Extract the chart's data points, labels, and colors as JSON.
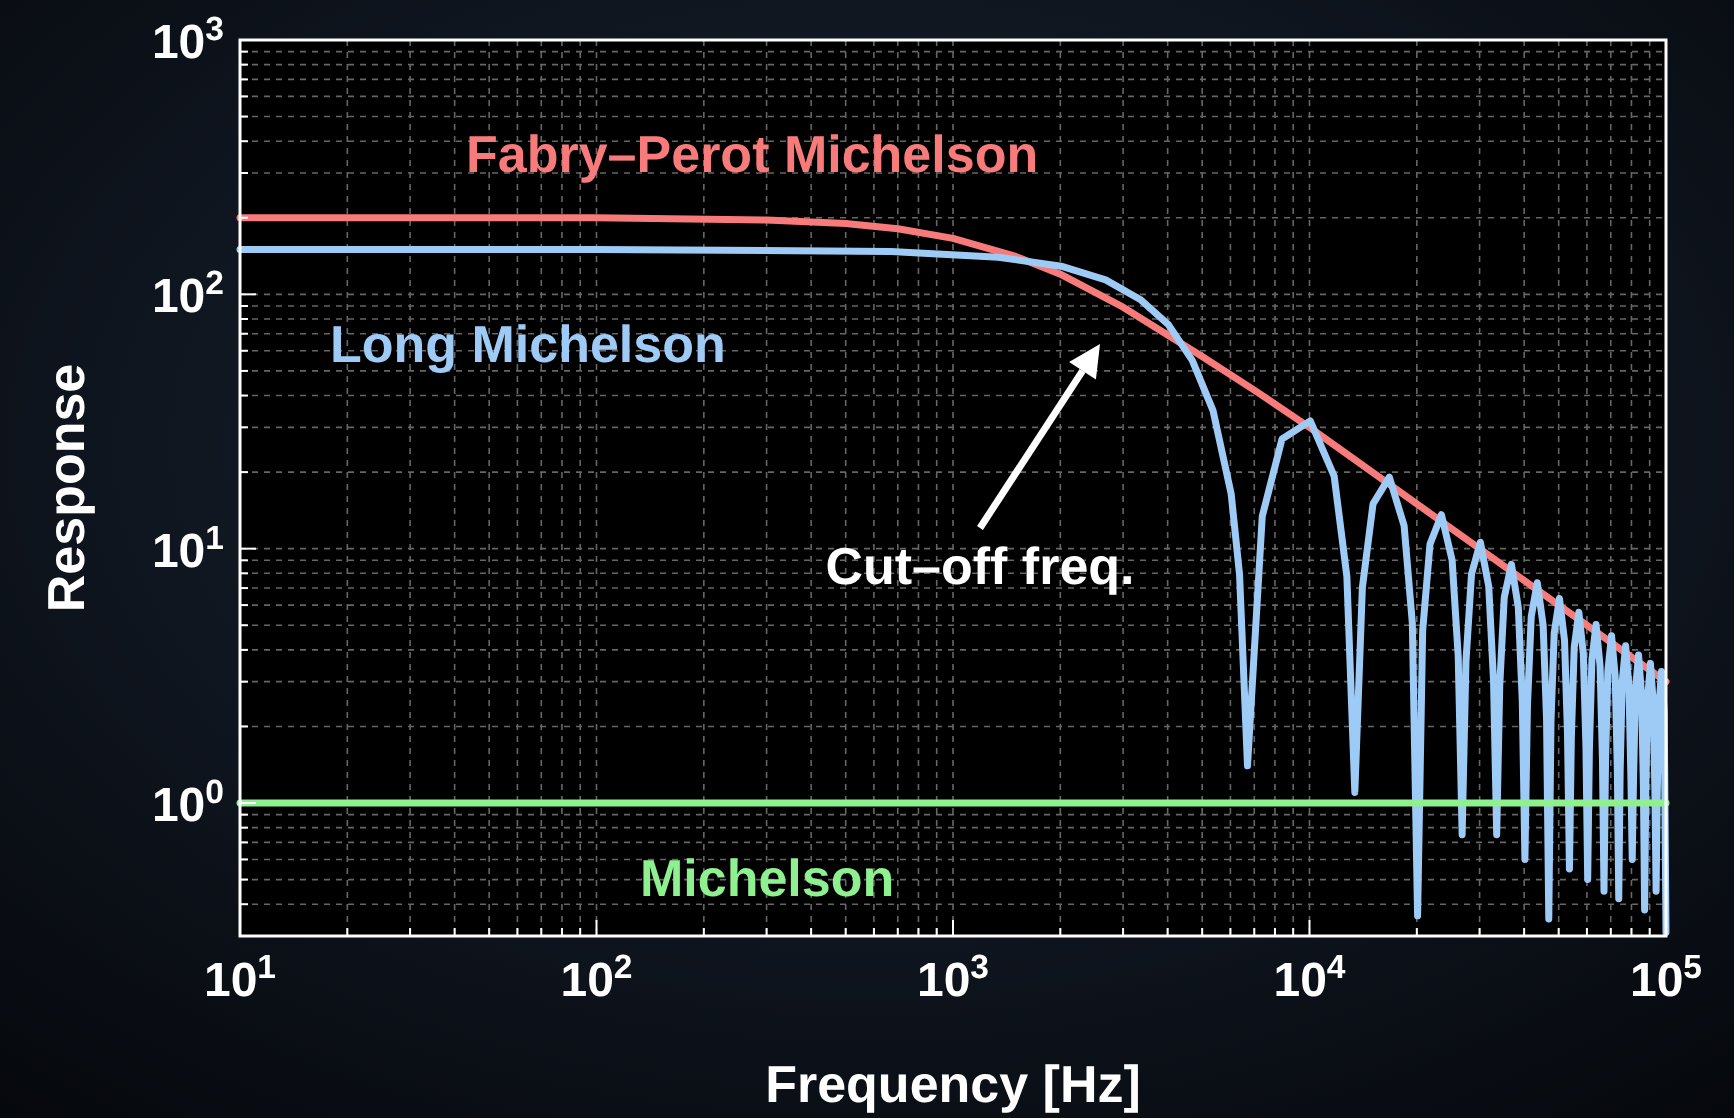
{
  "chart_data": {
    "type": "line",
    "xlabel": "Frequency [Hz]",
    "ylabel": "Response",
    "log": "xy",
    "grid": true,
    "line_style": "solid",
    "xlim": [
      10,
      100000
    ],
    "ylim": [
      0.3,
      1000
    ],
    "xticks": [
      {
        "value": 10,
        "label": "10$^{1}$"
      },
      {
        "value": 20,
        "label": null
      },
      {
        "value": 30,
        "label": null
      },
      {
        "value": 40,
        "label": null
      },
      {
        "value": 50,
        "label": null
      },
      {
        "value": 60,
        "label": null
      },
      {
        "value": 70,
        "label": null
      },
      {
        "value": 80,
        "label": null
      },
      {
        "value": 90,
        "label": null
      },
      {
        "value": 100,
        "label": "10$^{2}$"
      },
      {
        "value": 200,
        "label": null
      },
      {
        "value": 300,
        "label": null
      },
      {
        "value": 400,
        "label": null
      },
      {
        "value": 500,
        "label": null
      },
      {
        "value": 600,
        "label": null
      },
      {
        "value": 700,
        "label": null
      },
      {
        "value": 800,
        "label": null
      },
      {
        "value": 900,
        "label": null
      },
      {
        "value": 1000,
        "label": "10$^{3}$"
      },
      {
        "value": 2000,
        "label": null
      },
      {
        "value": 3000,
        "label": null
      },
      {
        "value": 4000,
        "label": null
      },
      {
        "value": 5000,
        "label": null
      },
      {
        "value": 6000,
        "label": null
      },
      {
        "value": 7000,
        "label": null
      },
      {
        "value": 8000,
        "label": null
      },
      {
        "value": 9000,
        "label": null
      },
      {
        "value": 10000,
        "label": "10$^{4}$"
      },
      {
        "value": 20000,
        "label": null
      },
      {
        "value": 30000,
        "label": null
      },
      {
        "value": 40000,
        "label": null
      },
      {
        "value": 50000,
        "label": null
      },
      {
        "value": 60000,
        "label": null
      },
      {
        "value": 70000,
        "label": null
      },
      {
        "value": 80000,
        "label": null
      },
      {
        "value": 90000,
        "label": null
      },
      {
        "value": 100000,
        "label": "10$^{5}$"
      }
    ],
    "yticks": [
      {
        "value": 0.4,
        "label": null
      },
      {
        "value": 0.5,
        "label": null
      },
      {
        "value": 0.6,
        "label": null
      },
      {
        "value": 0.7,
        "label": null
      },
      {
        "value": 0.8,
        "label": null
      },
      {
        "value": 0.9,
        "label": null
      },
      {
        "value": 1,
        "label": "10$^{0}$"
      },
      {
        "value": 2,
        "label": null
      },
      {
        "value": 3,
        "label": null
      },
      {
        "value": 4,
        "label": null
      },
      {
        "value": 5,
        "label": null
      },
      {
        "value": 6,
        "label": null
      },
      {
        "value": 7,
        "label": null
      },
      {
        "value": 8,
        "label": null
      },
      {
        "value": 9,
        "label": null
      },
      {
        "value": 10,
        "label": "10$^{1}$"
      },
      {
        "value": 20,
        "label": null
      },
      {
        "value": 30,
        "label": null
      },
      {
        "value": 40,
        "label": null
      },
      {
        "value": 50,
        "label": null
      },
      {
        "value": 60,
        "label": null
      },
      {
        "value": 70,
        "label": null
      },
      {
        "value": 80,
        "label": null
      },
      {
        "value": 90,
        "label": null
      },
      {
        "value": 100,
        "label": "10$^{2}$"
      },
      {
        "value": 200,
        "label": null
      },
      {
        "value": 300,
        "label": null
      },
      {
        "value": 400,
        "label": null
      },
      {
        "value": 500,
        "label": null
      },
      {
        "value": 600,
        "label": null
      },
      {
        "value": 700,
        "label": null
      },
      {
        "value": 800,
        "label": null
      },
      {
        "value": 900,
        "label": null
      },
      {
        "value": 1000,
        "label": "10$^{3}$"
      }
    ],
    "annotations": [
      "Cut–off freq."
    ],
    "series": [
      {
        "name": "Fabry–Perot Michelson",
        "color": "#f87b7b",
        "x": [
          10,
          100,
          300,
          500,
          700,
          1000,
          1500,
          2000,
          3000,
          5000,
          7000,
          10000,
          20000,
          50000,
          100000
        ],
        "values": [
          200,
          200,
          196,
          190,
          181,
          166,
          141,
          120,
          89,
          57,
          42,
          30,
          15,
          6,
          3
        ]
      },
      {
        "name": "Long Michelson",
        "color": "#9ecbf5",
        "x": [
          10,
          100,
          670,
          1340,
          2010,
          2680,
          3350,
          4020,
          4690,
          5360,
          6030,
          6365,
          6700,
          7370,
          8375,
          10050,
          11725,
          12730,
          13400,
          14070,
          15075,
          16750,
          18425,
          19430,
          20100,
          20770,
          21775,
          23450,
          25125,
          26130,
          26800,
          27470,
          28475,
          30150,
          31825,
          32830,
          33500,
          34170,
          35175,
          36850,
          38525,
          39530,
          40200,
          40870,
          41875,
          43550,
          45225,
          46230,
          46900,
          47570,
          48575,
          50250,
          51925,
          52930,
          53600,
          54270,
          55275,
          56950,
          58625,
          59630,
          60300,
          60970,
          61975,
          63650,
          65325,
          66330,
          67000,
          67670,
          68675,
          70350,
          72025,
          73030,
          73700,
          74370,
          75375,
          77050,
          78725,
          79730,
          80400,
          81070,
          82075,
          83750,
          85425,
          86430,
          87100,
          87770,
          88775,
          90450,
          92125,
          93130,
          93800,
          94470,
          95475,
          97150,
          98825,
          100000
        ],
        "values": [
          150,
          150,
          147.5,
          140,
          129,
          114,
          95.5,
          76,
          55,
          35,
          16.4,
          7.9,
          1.4,
          13.4,
          27,
          31.8,
          19.3,
          7.77,
          1.1,
          7.03,
          15,
          19.1,
          12.3,
          5.09,
          0.36,
          4.76,
          10.4,
          13.6,
          9,
          3.78,
          0.75,
          3.6,
          7.94,
          10.6,
          7.11,
          3.01,
          0.75,
          2.89,
          6.43,
          8.68,
          5.87,
          2.5,
          0.6,
          2.42,
          5.4,
          7.35,
          5,
          2.14,
          0.35,
          2.08,
          4.66,
          6.37,
          4.36,
          1.87,
          0.55,
          1.82,
          4.09,
          5.62,
          3.86,
          1.66,
          0.5,
          1.62,
          3.65,
          5.03,
          3.46,
          1.49,
          0.45,
          1.46,
          3.29,
          4.55,
          3.14,
          1.35,
          0.42,
          1.33,
          3,
          4.15,
          2.87,
          1.24,
          0.6,
          1.22,
          2.76,
          3.82,
          2.65,
          1.14,
          0.38,
          1.13,
          2.55,
          3.54,
          2.46,
          1.06,
          0.45,
          1.05,
          2.37,
          3.29,
          2.29,
          0.31
        ]
      },
      {
        "name": "Michelson",
        "color": "#8ef08e",
        "x": [
          10,
          100000
        ],
        "values": [
          1,
          1
        ]
      }
    ]
  }
}
